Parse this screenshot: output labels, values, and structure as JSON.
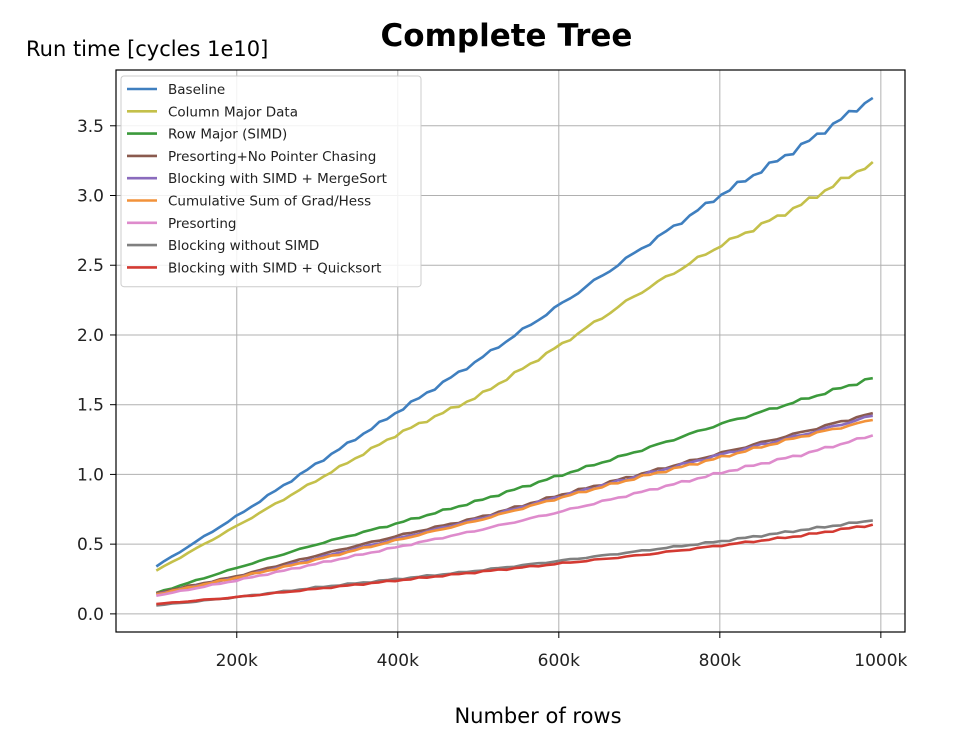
{
  "chart_data": {
    "type": "line",
    "title": "Complete Tree",
    "xlabel": "Number of rows",
    "ylabel": "Run time [cycles 1e10]",
    "xlim": [
      50000,
      1030000
    ],
    "ylim": [
      -0.13,
      3.9
    ],
    "x_ticks": [
      200000,
      400000,
      600000,
      800000,
      1000000
    ],
    "x_tick_labels": [
      "200k",
      "400k",
      "600k",
      "800k",
      "1000k"
    ],
    "y_ticks": [
      0.0,
      0.5,
      1.0,
      1.5,
      2.0,
      2.5,
      3.0,
      3.5
    ],
    "y_tick_labels": [
      "0.0",
      "0.5",
      "1.0",
      "1.5",
      "2.0",
      "2.5",
      "3.0",
      "3.5"
    ],
    "grid": true,
    "legend_position": "top-left",
    "x": [
      100000,
      200000,
      300000,
      400000,
      500000,
      600000,
      700000,
      800000,
      900000,
      990000
    ],
    "series": [
      {
        "name": "Baseline",
        "color": "#3f7fbf",
        "values": [
          0.34,
          0.7,
          1.08,
          1.45,
          1.82,
          2.21,
          2.61,
          3.0,
          3.35,
          3.7
        ]
      },
      {
        "name": "Column Major Data",
        "color": "#c4c04a",
        "values": [
          0.31,
          0.63,
          0.96,
          1.29,
          1.56,
          1.92,
          2.3,
          2.64,
          2.93,
          3.24
        ]
      },
      {
        "name": "Row Major (SIMD)",
        "color": "#3c9a3c",
        "values": [
          0.15,
          0.33,
          0.5,
          0.65,
          0.81,
          0.99,
          1.17,
          1.36,
          1.53,
          1.69
        ]
      },
      {
        "name": "Presorting+No Pointer Chasing",
        "color": "#8a5a4e",
        "values": [
          0.15,
          0.27,
          0.42,
          0.56,
          0.69,
          0.85,
          1.0,
          1.15,
          1.3,
          1.44
        ]
      },
      {
        "name": "Blocking with SIMD + MergeSort",
        "color": "#8a6bbd",
        "values": [
          0.14,
          0.26,
          0.4,
          0.54,
          0.68,
          0.84,
          0.99,
          1.14,
          1.28,
          1.42
        ]
      },
      {
        "name": "Cumulative Sum of Grad/Hess",
        "color": "#f2923a",
        "values": [
          0.14,
          0.26,
          0.39,
          0.53,
          0.67,
          0.83,
          0.98,
          1.12,
          1.27,
          1.39
        ]
      },
      {
        "name": "Presorting",
        "color": "#de8bcc",
        "values": [
          0.13,
          0.24,
          0.36,
          0.48,
          0.6,
          0.73,
          0.87,
          1.01,
          1.14,
          1.28
        ]
      },
      {
        "name": "Blocking without SIMD",
        "color": "#808080",
        "values": [
          0.06,
          0.12,
          0.19,
          0.25,
          0.31,
          0.38,
          0.45,
          0.52,
          0.6,
          0.67
        ]
      },
      {
        "name": "Blocking with SIMD + Quicksort",
        "color": "#d33a32",
        "values": [
          0.07,
          0.12,
          0.18,
          0.24,
          0.3,
          0.36,
          0.42,
          0.49,
          0.56,
          0.64
        ]
      }
    ]
  }
}
